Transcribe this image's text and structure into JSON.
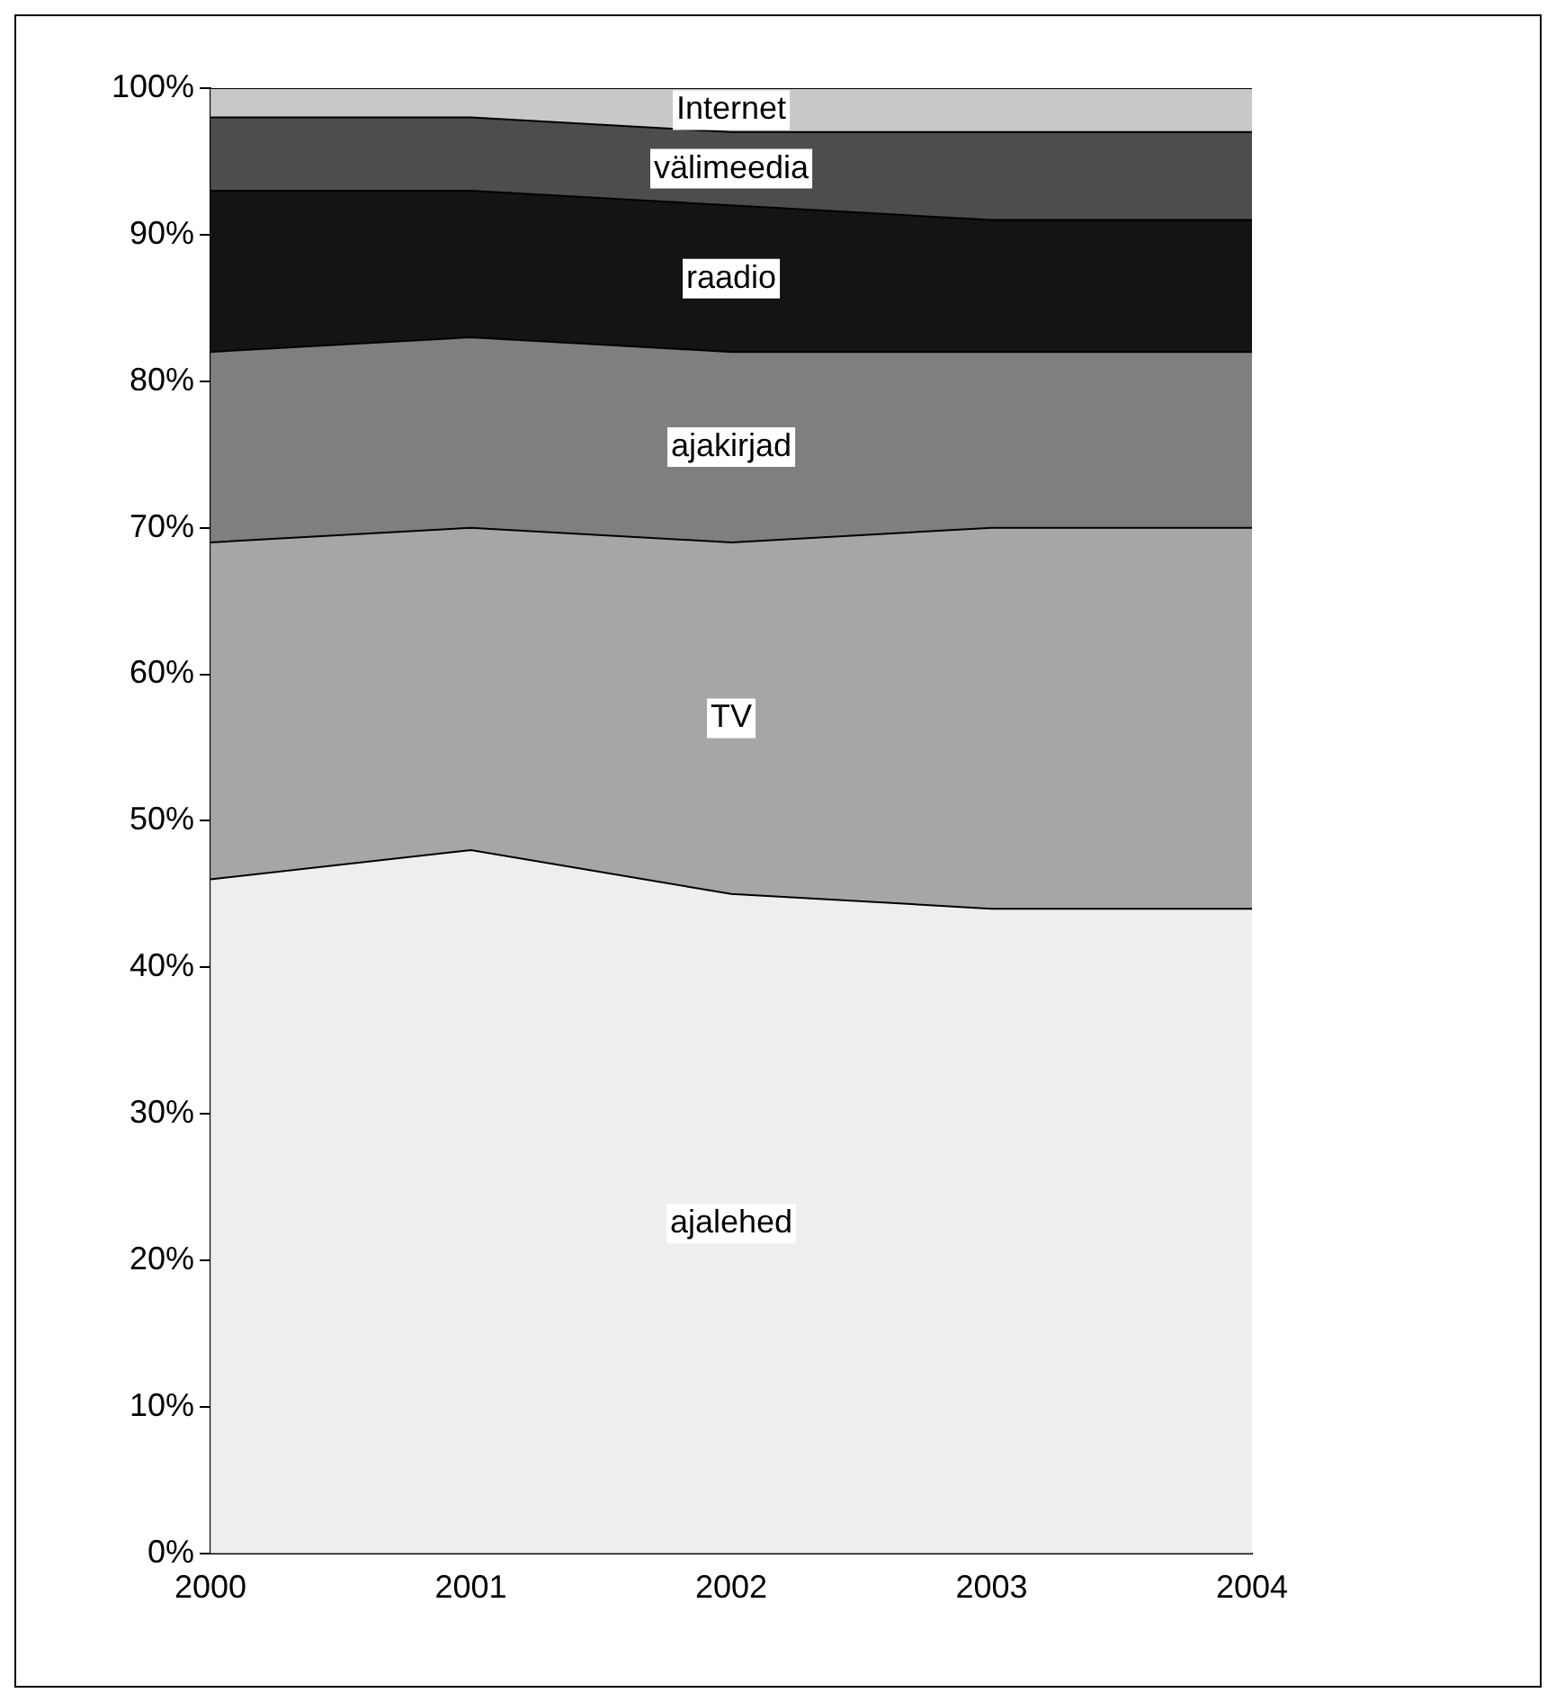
{
  "chart_data": {
    "type": "area",
    "stacked": true,
    "categories": [
      "2000",
      "2001",
      "2002",
      "2003",
      "2004"
    ],
    "series": [
      {
        "name": "ajalehed",
        "color": "#eeeeee",
        "values": [
          46,
          48,
          45,
          44,
          44
        ]
      },
      {
        "name": "TV",
        "color": "#a6a6a6",
        "values": [
          23,
          22,
          24,
          26,
          26
        ]
      },
      {
        "name": "ajakirjad",
        "color": "#7f7f7f",
        "values": [
          13,
          13,
          13,
          12,
          12
        ]
      },
      {
        "name": "raadio",
        "color": "#141414",
        "values": [
          11,
          10,
          10,
          9,
          9
        ]
      },
      {
        "name": "välimeedia",
        "color": "#4d4d4d",
        "values": [
          5,
          5,
          5,
          6,
          6
        ]
      },
      {
        "name": "Internet",
        "color": "#c8c8c8",
        "values": [
          2,
          2,
          3,
          3,
          3
        ]
      }
    ],
    "ylim": [
      0,
      100
    ],
    "yticks": [
      {
        "value": 0,
        "label": "0%"
      },
      {
        "value": 10,
        "label": "10%"
      },
      {
        "value": 20,
        "label": "20%"
      },
      {
        "value": 30,
        "label": "30%"
      },
      {
        "value": 40,
        "label": "40%"
      },
      {
        "value": 50,
        "label": "50%"
      },
      {
        "value": 60,
        "label": "60%"
      },
      {
        "value": 70,
        "label": "70%"
      },
      {
        "value": 80,
        "label": "80%"
      },
      {
        "value": 90,
        "label": "90%"
      },
      {
        "value": 100,
        "label": "100%"
      }
    ],
    "grid": false,
    "legend": false
  }
}
